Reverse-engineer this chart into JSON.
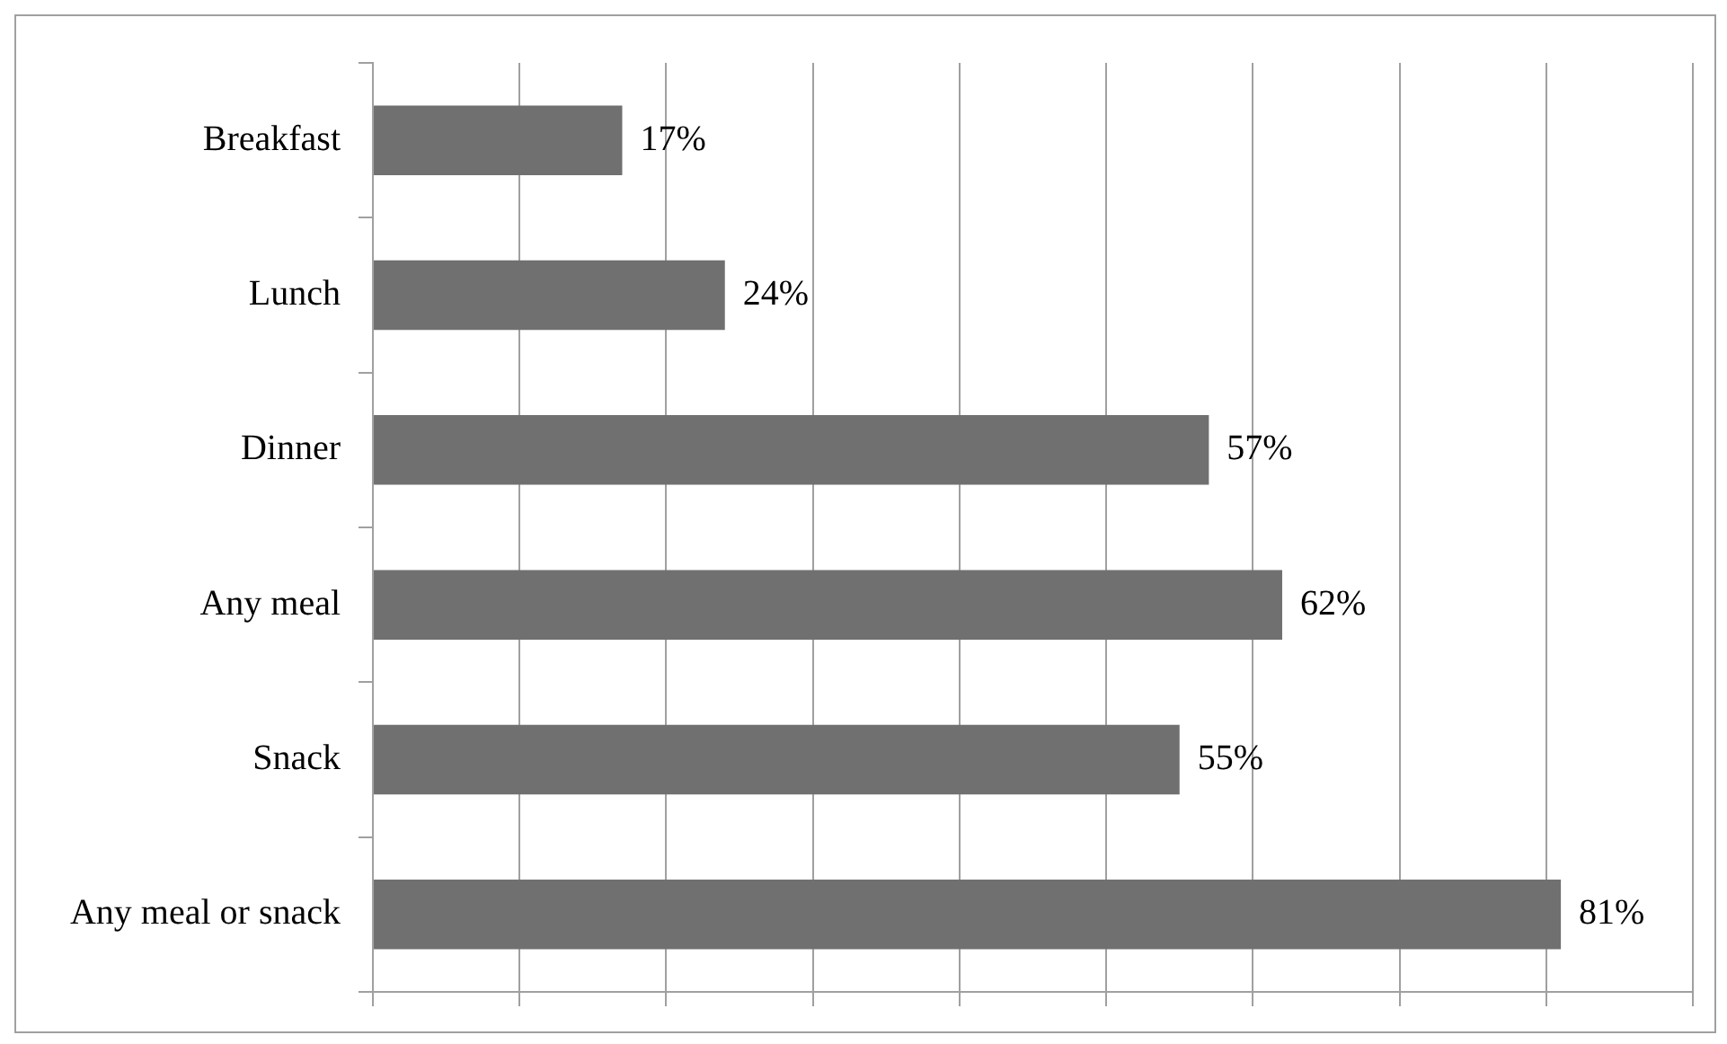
{
  "chart_data": {
    "type": "bar",
    "orientation": "horizontal",
    "categories": [
      "Breakfast",
      "Lunch",
      "Dinner",
      "Any meal",
      "Snack",
      "Any meal or snack"
    ],
    "values": [
      17,
      24,
      57,
      62,
      55,
      81
    ],
    "value_labels": [
      "17%",
      "24%",
      "57%",
      "62%",
      "55%",
      "81%"
    ],
    "color": "#707070",
    "xlim": [
      0,
      90
    ],
    "xticks": [
      {
        "value": 0,
        "label": null
      },
      {
        "value": 10,
        "label": null
      },
      {
        "value": 20,
        "label": null
      },
      {
        "value": 30,
        "label": null
      },
      {
        "value": 40,
        "label": null
      },
      {
        "value": 50,
        "label": null
      },
      {
        "value": 60,
        "label": null
      },
      {
        "value": 70,
        "label": null
      },
      {
        "value": 80,
        "label": null
      },
      {
        "value": 90,
        "label": null
      }
    ],
    "grid": "x",
    "legend": false,
    "tick_labels": "y"
  }
}
